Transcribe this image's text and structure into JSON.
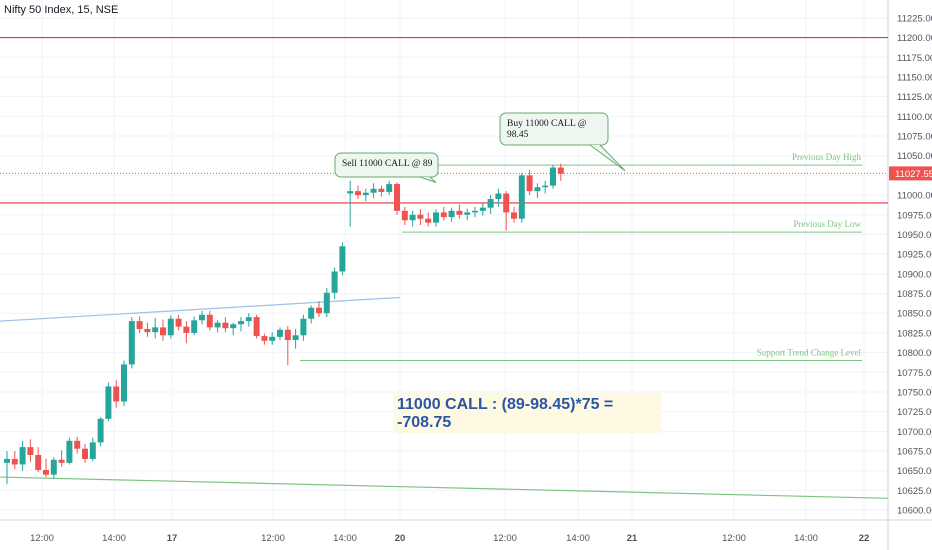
{
  "header": {
    "symbol": "Nifty 50 Index, 15, NSE"
  },
  "colors": {
    "up": "#26a69a",
    "down": "#ef5350",
    "hline": "#e0383f",
    "green_line": "#7cc47f",
    "blue_line": "#9ec3e8",
    "grid": "#f0f3fa",
    "price_tag": "#ef5350"
  },
  "price_tag": "11027.55",
  "pl_note": "11000 CALL : (89-98.45)*75 = -708.75",
  "chart_data": {
    "type": "candlestick",
    "title": "Nifty 50 Index, 15, NSE",
    "y_axis": {
      "side": "right",
      "ylim": [
        10590,
        11235
      ],
      "ticks": [
        10600,
        10625,
        10650,
        10675,
        10700,
        10725,
        10750,
        10775,
        10800,
        10825,
        10850,
        10875,
        10900,
        10925,
        10950,
        10975,
        11000,
        11025,
        11050,
        11075,
        11100,
        11125,
        11150,
        11175,
        11200,
        11225
      ]
    },
    "x_axis": {
      "tick_labels": [
        "12:00",
        "14:00",
        "17",
        "12:00",
        "14:00",
        "20",
        "12:00",
        "14:00",
        "21",
        "12:00",
        "14:00",
        "22"
      ],
      "bold": [
        "17",
        "20",
        "21",
        "22"
      ]
    },
    "candles": [
      [
        10660,
        10675,
        10633,
        10665
      ],
      [
        10665,
        10675,
        10652,
        10658
      ],
      [
        10658,
        10688,
        10650,
        10680
      ],
      [
        10680,
        10690,
        10661,
        10670
      ],
      [
        10670,
        10680,
        10648,
        10651
      ],
      [
        10651,
        10665,
        10642,
        10645
      ],
      [
        10645,
        10667,
        10640,
        10664
      ],
      [
        10664,
        10676,
        10655,
        10660
      ],
      [
        10660,
        10692,
        10658,
        10688
      ],
      [
        10688,
        10693,
        10672,
        10678
      ],
      [
        10678,
        10684,
        10660,
        10665
      ],
      [
        10665,
        10692,
        10662,
        10686
      ],
      [
        10686,
        10718,
        10681,
        10716
      ],
      [
        10716,
        10762,
        10713,
        10757
      ],
      [
        10757,
        10765,
        10730,
        10738
      ],
      [
        10738,
        10790,
        10732,
        10785
      ],
      [
        10785,
        10845,
        10780,
        10840
      ],
      [
        10840,
        10846,
        10825,
        10830
      ],
      [
        10830,
        10838,
        10820,
        10826
      ],
      [
        10826,
        10844,
        10818,
        10832
      ],
      [
        10832,
        10842,
        10815,
        10822
      ],
      [
        10822,
        10847,
        10818,
        10843
      ],
      [
        10843,
        10848,
        10828,
        10833
      ],
      [
        10833,
        10840,
        10812,
        10825
      ],
      [
        10825,
        10846,
        10822,
        10841
      ],
      [
        10841,
        10853,
        10836,
        10848
      ],
      [
        10848,
        10853,
        10828,
        10832
      ],
      [
        10832,
        10841,
        10826,
        10838
      ],
      [
        10838,
        10845,
        10826,
        10831
      ],
      [
        10831,
        10838,
        10822,
        10836
      ],
      [
        10836,
        10845,
        10827,
        10840
      ],
      [
        10840,
        10850,
        10833,
        10845
      ],
      [
        10845,
        10848,
        10818,
        10821
      ],
      [
        10821,
        10824,
        10810,
        10815
      ],
      [
        10815,
        10826,
        10810,
        10820
      ],
      [
        10820,
        10832,
        10816,
        10829
      ],
      [
        10829,
        10834,
        10784,
        10816
      ],
      [
        10816,
        10830,
        10805,
        10822
      ],
      [
        10822,
        10848,
        10815,
        10843
      ],
      [
        10843,
        10860,
        10837,
        10857
      ],
      [
        10857,
        10865,
        10845,
        10850
      ],
      [
        10850,
        10882,
        10845,
        10876
      ],
      [
        10876,
        10908,
        10868,
        10903
      ],
      [
        10903,
        10940,
        10898,
        10935
      ],
      [
        11002,
        11018,
        10960,
        11005
      ],
      [
        11005,
        11012,
        10995,
        11000
      ],
      [
        11000,
        11008,
        10992,
        11003
      ],
      [
        11003,
        11015,
        10996,
        11008
      ],
      [
        11008,
        11012,
        10998,
        11004
      ],
      [
        11004,
        11018,
        11000,
        11014
      ],
      [
        11014,
        11016,
        10975,
        10980
      ],
      [
        10980,
        10985,
        10962,
        10968
      ],
      [
        10968,
        10980,
        10960,
        10975
      ],
      [
        10975,
        10982,
        10962,
        10970
      ],
      [
        10970,
        10978,
        10960,
        10965
      ],
      [
        10965,
        10982,
        10960,
        10978
      ],
      [
        10978,
        10985,
        10968,
        10972
      ],
      [
        10972,
        10984,
        10966,
        10980
      ],
      [
        10980,
        10988,
        10970,
        10975
      ],
      [
        10975,
        10983,
        10968,
        10978
      ],
      [
        10978,
        10985,
        10972,
        10980
      ],
      [
        10980,
        10990,
        10974,
        10984
      ],
      [
        10984,
        11000,
        10976,
        10995
      ],
      [
        10995,
        11008,
        10985,
        11002
      ],
      [
        11002,
        11005,
        10955,
        10978
      ],
      [
        10978,
        10985,
        10965,
        10970
      ],
      [
        10970,
        11028,
        10965,
        11025
      ],
      [
        11025,
        11032,
        11000,
        11005
      ],
      [
        11005,
        11015,
        10996,
        11010
      ],
      [
        11010,
        11018,
        11002,
        11012
      ],
      [
        11012,
        11038,
        11008,
        11035
      ],
      [
        11035,
        11040,
        11018,
        11027
      ]
    ],
    "horizontal_lines": [
      {
        "price": 11200,
        "color": "#e0383f",
        "label": ""
      },
      {
        "price": 10990,
        "color": "#e0383f",
        "label": ""
      },
      {
        "price": 11038,
        "color": "#7cc47f",
        "label": "Previous Day High"
      },
      {
        "price": 10953,
        "color": "#7cc47f",
        "label": "Previous Day Low"
      },
      {
        "price": 10790,
        "color": "#7cc47f",
        "label": "Support Trend Change Level"
      }
    ],
    "trend_lines": [
      {
        "from": [
          0,
          10840
        ],
        "to": [
          45,
          10870
        ],
        "color": "#9ec3e8"
      },
      {
        "from": [
          0,
          10642
        ],
        "to": [
          112,
          10615
        ],
        "color": "#7cc47f"
      }
    ],
    "annotations": [
      {
        "text": "Sell 11000 CALL @ 89",
        "price": 11016,
        "bar": 47
      },
      {
        "text": "Buy 11000 CALL @ 98.45",
        "price": 11031,
        "bar": 71
      }
    ]
  }
}
